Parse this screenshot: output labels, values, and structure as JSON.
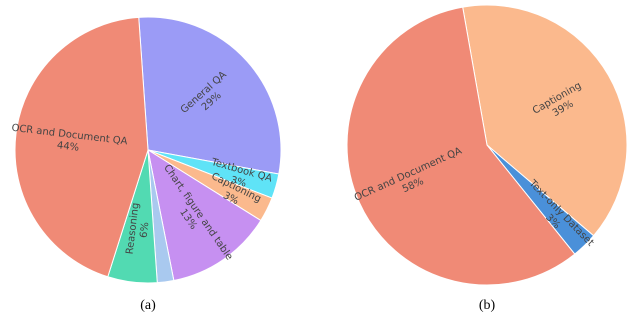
{
  "chart_data": [
    {
      "type": "pie",
      "caption": "(a)",
      "categories": [
        "General QA",
        "Textbook QA",
        "Captioning",
        "Chart, figure and table",
        null,
        "Reasoning",
        "OCR and Document QA"
      ],
      "values": [
        29,
        3,
        3,
        13,
        2,
        6,
        44
      ],
      "value_labels": [
        "29%",
        "3%",
        "3%",
        "13%",
        null,
        "6%",
        "44%"
      ],
      "colors": [
        "#9b9bf6",
        "#5fe3f7",
        "#fbb98d",
        "#c690f1",
        "#a9c9ef",
        "#52dab2",
        "#f08a76"
      ]
    },
    {
      "type": "pie",
      "caption": "(b)",
      "categories": [
        "Captioning",
        "Text-only Dataset",
        "OCR and Document QA"
      ],
      "values": [
        39,
        3,
        58
      ],
      "value_labels": [
        "39%",
        "3%",
        "58%"
      ],
      "colors": [
        "#fbb98d",
        "#4a90d9",
        "#f08a76"
      ]
    }
  ]
}
